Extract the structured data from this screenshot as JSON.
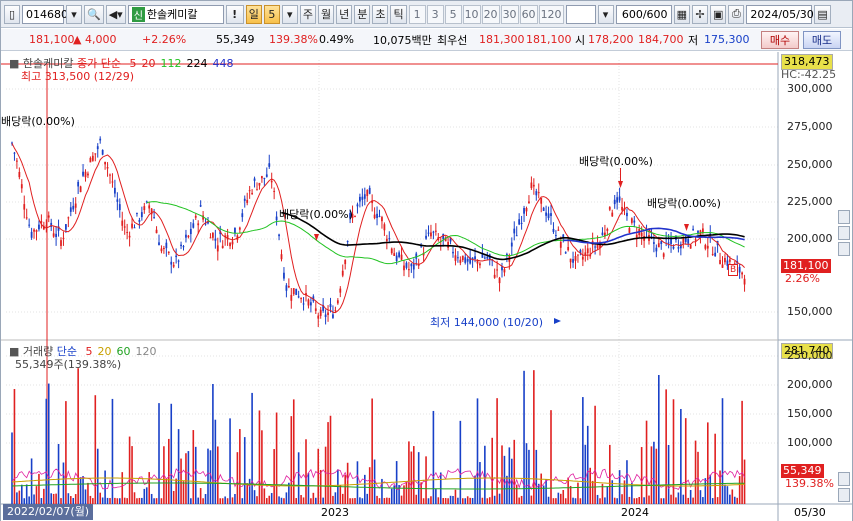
{
  "toolbar": {
    "code": "014680",
    "shin": "신",
    "stock_name": "한솔케미칼",
    "alert": "!",
    "period_day": "일",
    "period_num": "5",
    "period_week": "주",
    "period_month": "월",
    "period_year": "년",
    "period_minute": "분",
    "period_second": "초",
    "period_tick": "틱",
    "nums": [
      "1",
      "3",
      "5",
      "10",
      "20",
      "30",
      "60",
      "120"
    ],
    "count": "600/600",
    "date": "2024/05/30"
  },
  "info": {
    "price": "181,100",
    "change": "4,000",
    "change_rate": "+2.26%",
    "volume": "55,349",
    "volume_rate": "139.38%",
    "turnover": "0.49%",
    "amount": "10,075백만",
    "best_bid_label": "최우선",
    "best_ask": "181,300",
    "best_bid": "181,100",
    "open_label": "시",
    "open": "178,200",
    "high": "184,700",
    "low_label": "저",
    "low": "175,300",
    "buy": "매수",
    "sell": "매도"
  },
  "price_panel": {
    "legend_name": "한솔케미칼",
    "legend_type": "종가 단순",
    "ma": [
      "5",
      "20",
      "112",
      "224",
      "448"
    ],
    "ma_colors": [
      "#e02020",
      "#e02020",
      "#22c322",
      "#000000",
      "#2233cc"
    ],
    "high_note": "최고 313,500 (12/29)",
    "low_note": "최저 144,000 (10/20)",
    "hc": "HC:-42.25",
    "dividend_labels": [
      "배당락(0.00%)",
      "배당락(0.00%)",
      "배당락(0.00%)",
      "배당락(0.00%)"
    ],
    "axis_top_box": "318,473",
    "current_box": "181,100",
    "current_rate": "2.26%",
    "b_marker": "B",
    "y_ticks": [
      "300,000",
      "275,000",
      "250,000",
      "225,000",
      "200,000",
      "150,000"
    ]
  },
  "volume_panel": {
    "legend_name": "거래량",
    "legend_type": "단순",
    "ma": [
      "5",
      "20",
      "60",
      "120"
    ],
    "ma_colors": [
      "#e02020",
      "#c8a000",
      "#22a322",
      "#888888"
    ],
    "volume_note": "55,349주(139.38%)",
    "axis_top_box": "281,740",
    "current_box": "55,349",
    "current_rate": "139.38%",
    "y_ticks": [
      "250,000",
      "200,000",
      "150,000",
      "100,000"
    ]
  },
  "xaxis": {
    "start_date": "2022/02/07(월)",
    "label_2023": "2023",
    "label_2024": "2024",
    "end_label": "05/30"
  },
  "colors": {
    "up": "#e02020",
    "down": "#1840c8",
    "ma20": "#22c322",
    "ma112": "#000000",
    "ma224": "#2233cc"
  }
}
